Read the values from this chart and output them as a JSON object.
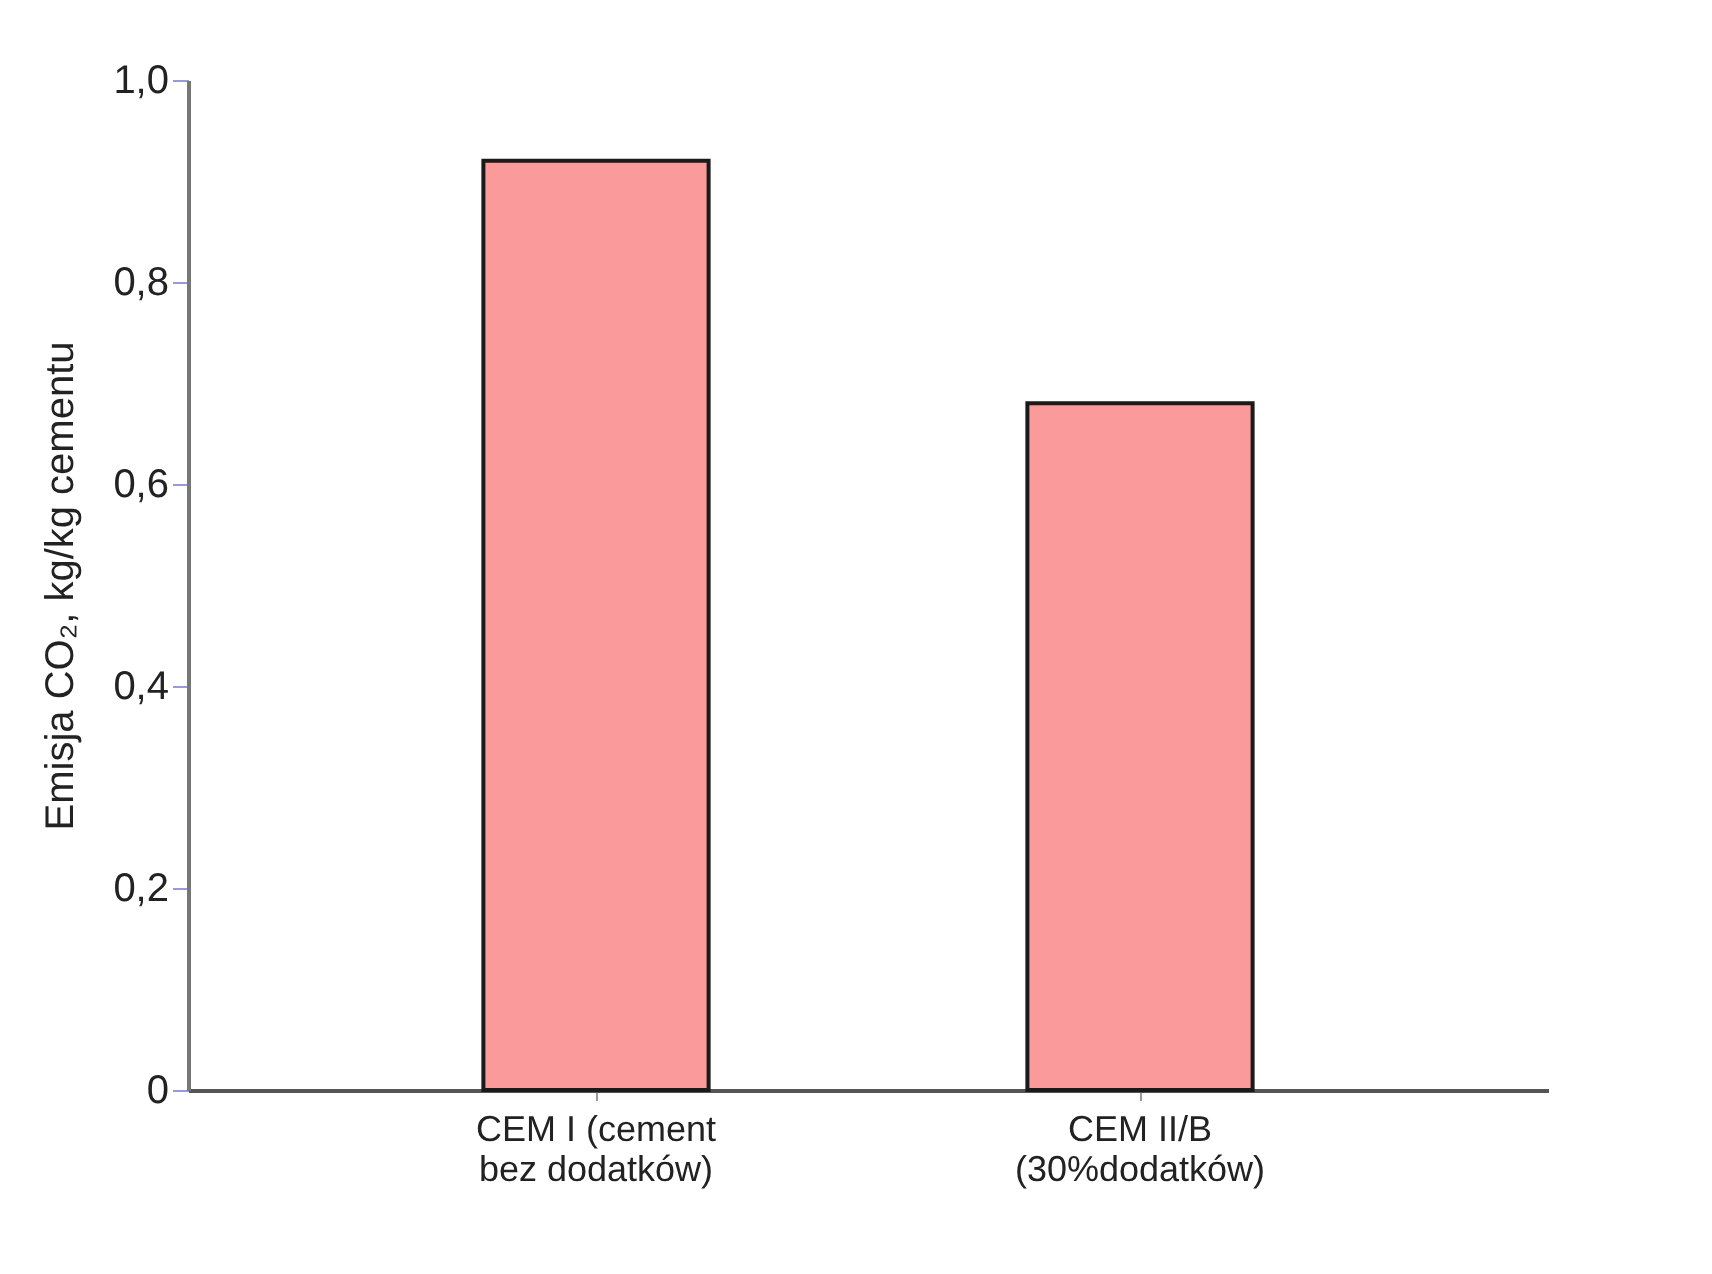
{
  "chart_data": {
    "type": "bar",
    "ylabel": "Emisja CO₂, kg/kg cementu",
    "categories": [
      "CEM I (cement\nbez dodatków)",
      "CEM II/B\n(30%dodatków)"
    ],
    "values": [
      0.92,
      0.68
    ],
    "color": "#fa9a9a",
    "ylim": [
      0,
      1
    ],
    "yticks": [
      {
        "value": 0,
        "label": "0"
      },
      {
        "value": 0.2,
        "label": "0,2"
      },
      {
        "value": 0.4,
        "label": "0,4"
      },
      {
        "value": 0.6,
        "label": "0,6"
      },
      {
        "value": 0.8,
        "label": "0,8"
      },
      {
        "value": 1,
        "label": "1,0"
      }
    ],
    "grid": false
  }
}
